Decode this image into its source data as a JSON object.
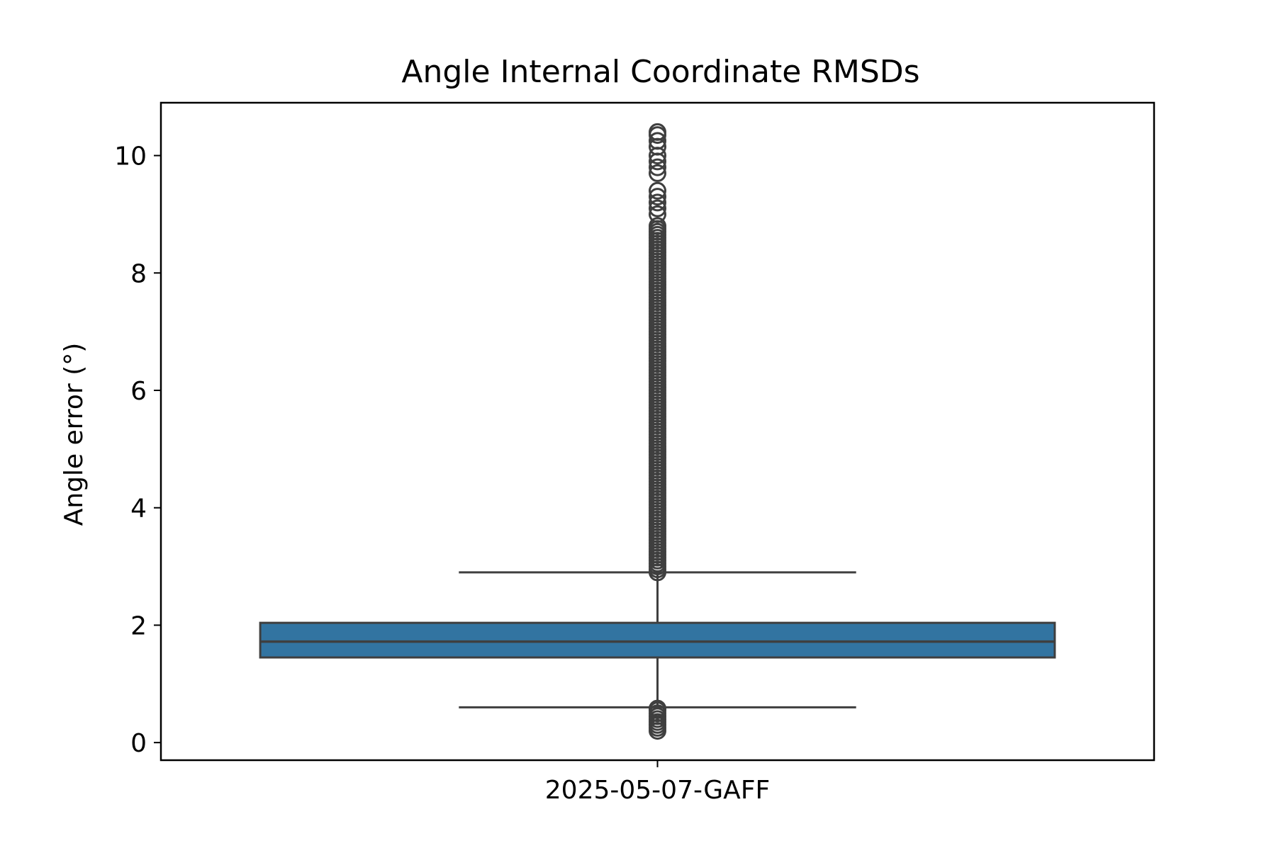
{
  "chart_data": {
    "type": "box",
    "title": "Angle Internal Coordinate RMSDs",
    "xlabel": "",
    "ylabel": "Angle error (°)",
    "categories": [
      "2025-05-07-GAFF"
    ],
    "ylim": [
      -0.3,
      10.9
    ],
    "yticks": [
      0,
      2,
      4,
      6,
      8,
      10
    ],
    "grid": false,
    "legend": "none",
    "colors": {
      "box": "#3274a1",
      "lines": "#3f3f3f",
      "axes": "#000000"
    },
    "boxes": [
      {
        "category": "2025-05-07-GAFF",
        "whisker_low": 0.6,
        "q1": 1.45,
        "median": 1.72,
        "q3": 2.04,
        "whisker_high": 2.9,
        "outliers_low": [
          0.2,
          0.25,
          0.3,
          0.35,
          0.4,
          0.45,
          0.5,
          0.55,
          0.58
        ],
        "outliers_high_dense_range": [
          2.9,
          8.8
        ],
        "outliers_high": [
          9.0,
          9.1,
          9.2,
          9.3,
          9.4,
          9.7,
          9.8,
          9.9,
          10.0,
          10.15,
          10.25,
          10.35,
          10.4
        ]
      }
    ]
  }
}
